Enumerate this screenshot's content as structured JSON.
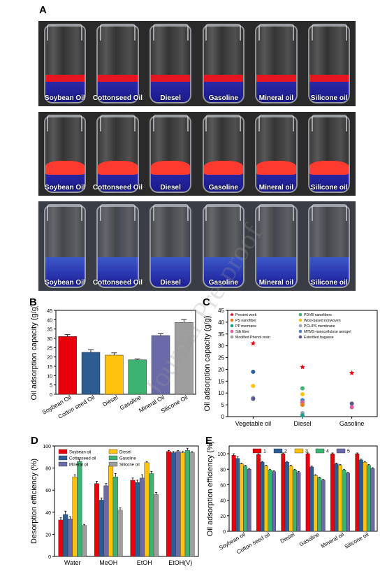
{
  "panel_labels": {
    "A": "A",
    "B": "B",
    "C": "C",
    "D": "D",
    "E": "E"
  },
  "watermark": "Journal Pre-proof",
  "photos": {
    "row1": [
      "Soybean Oil",
      "Cottonseed Oil",
      "Diesel",
      "Gasoline",
      "Mineral oil",
      "Silicone oil"
    ],
    "row2": [
      "Soybean Oil",
      "Cottonseed Oil",
      "Diesel",
      "Gasoline",
      "Mineral oil",
      "Silicone oil"
    ],
    "row3": [
      "Soybean Oil",
      "Cottonseed Oil",
      "Diesel",
      "Gasoline",
      "Mineral oil",
      "Silicone oil"
    ]
  },
  "colors": {
    "red": "#e8000b",
    "blue": "#2b5d93",
    "yellow": "#ffc20e",
    "green": "#3cb371",
    "purple": "#6a6aa8",
    "gray": "#9e9e9e",
    "photo_red": "#e8151f",
    "photo_blue": "#1b1a8c"
  },
  "chart_data": [
    {
      "panel": "B",
      "type": "bar",
      "ylabel": "Oil adsorption capacity (g/g)",
      "categories": [
        "Soybean Oil",
        "Cotton seed Oil",
        "Diesel",
        "Gasoline",
        "Mineral Oil",
        "Silicone Oil"
      ],
      "values": [
        31,
        22.5,
        21,
        18.5,
        31.5,
        38.5
      ],
      "errors": [
        1.0,
        1.4,
        1.2,
        0.4,
        1.0,
        1.6
      ],
      "colors": [
        "#e8000b",
        "#2b5d93",
        "#ffc20e",
        "#3cb371",
        "#6a6aa8",
        "#9e9e9e"
      ],
      "ylim": [
        0,
        45
      ],
      "yticks": [
        "0",
        "5",
        "10",
        "15",
        "20",
        "25",
        "30",
        "35",
        "40",
        "45"
      ]
    },
    {
      "panel": "C",
      "type": "scatter",
      "ylabel": "Oil adsorption capacity (g/g)",
      "categories": [
        "Vegetable oil",
        "Diesel",
        "Gasoline"
      ],
      "ylim": [
        0,
        45
      ],
      "yticks": [
        "0",
        "5",
        "10",
        "15",
        "20",
        "25",
        "30",
        "35",
        "40",
        "45"
      ],
      "legend": [
        {
          "name": "Present work",
          "color": "#e8000b",
          "marker": "star"
        },
        {
          "name": "PDVB nanofibers",
          "color": "#3cb371",
          "marker": "circle"
        },
        {
          "name": "PS nanofiber",
          "color": "#f07b10",
          "marker": "circle"
        },
        {
          "name": "Wool-based nonwoven",
          "color": "#ffc20e",
          "marker": "circle"
        },
        {
          "name": "PP memrane",
          "color": "#1aa08a",
          "marker": "circle"
        },
        {
          "name": "PCL/PS membrane",
          "color": "#9aa7b5",
          "marker": "circle"
        },
        {
          "name": "Silk fiber",
          "color": "#e05a9c",
          "marker": "circle"
        },
        {
          "name": "MTMS-nanocellulose aerogel",
          "color": "#4a80c0",
          "marker": "circle"
        },
        {
          "name": "Modified Phenol resin",
          "color": "#a0a0a0",
          "marker": "circle"
        },
        {
          "name": "Esterified bagasse",
          "color": "#5a5a8a",
          "marker": "circle"
        }
      ],
      "points": [
        {
          "x": "Vegetable oil",
          "y": 31,
          "color": "#e8000b",
          "marker": "star"
        },
        {
          "x": "Vegetable oil",
          "y": 19,
          "color": "#2b5d93",
          "marker": "circle"
        },
        {
          "x": "Vegetable oil",
          "y": 13,
          "color": "#ffc20e",
          "marker": "circle"
        },
        {
          "x": "Vegetable oil",
          "y": 8,
          "color": "#9aa7b5",
          "marker": "circle"
        },
        {
          "x": "Vegetable oil",
          "y": 7.5,
          "color": "#5a5a8a",
          "marker": "circle"
        },
        {
          "x": "Diesel",
          "y": 21,
          "color": "#e8000b",
          "marker": "star"
        },
        {
          "x": "Diesel",
          "y": 12,
          "color": "#3cb371",
          "marker": "circle"
        },
        {
          "x": "Diesel",
          "y": 9.5,
          "color": "#ffc20e",
          "marker": "circle"
        },
        {
          "x": "Diesel",
          "y": 7,
          "color": "#4a80c0",
          "marker": "circle"
        },
        {
          "x": "Diesel",
          "y": 6,
          "color": "#e05a9c",
          "marker": "circle"
        },
        {
          "x": "Diesel",
          "y": 5,
          "color": "#f07b10",
          "marker": "circle"
        },
        {
          "x": "Diesel",
          "y": 1.5,
          "color": "#9aa7b5",
          "marker": "circle"
        },
        {
          "x": "Diesel",
          "y": 0.5,
          "color": "#1aa08a",
          "marker": "circle"
        },
        {
          "x": "Gasoline",
          "y": 18.5,
          "color": "#e8000b",
          "marker": "star"
        },
        {
          "x": "Gasoline",
          "y": 5.5,
          "color": "#5a5a8a",
          "marker": "circle"
        },
        {
          "x": "Gasoline",
          "y": 4,
          "color": "#e05a9c",
          "marker": "circle"
        }
      ]
    },
    {
      "panel": "D",
      "type": "bar",
      "ylabel": "Desorption efficiency (%)",
      "categories": [
        "Water",
        "MeOH",
        "EtOH",
        "EtOH(V)"
      ],
      "ylim": [
        0,
        100
      ],
      "yticks": [
        "0",
        "20",
        "40",
        "60",
        "80",
        "100"
      ],
      "series": [
        {
          "name": "Soybean oil",
          "color": "#e8000b",
          "values": [
            33,
            66,
            69,
            95
          ],
          "errors": [
            2,
            2,
            2,
            1
          ]
        },
        {
          "name": "Cottonseed oil",
          "color": "#2b5d93",
          "values": [
            38,
            51,
            67,
            94
          ],
          "errors": [
            3,
            2,
            2,
            1
          ]
        },
        {
          "name": "Mineral oil",
          "color": "#6a6aa8",
          "values": [
            34,
            64,
            71,
            95
          ],
          "errors": [
            2,
            2,
            3,
            1
          ]
        },
        {
          "name": "Diesel",
          "color": "#ffc20e",
          "values": [
            72,
            82,
            85,
            94
          ],
          "errors": [
            2,
            2,
            1,
            1
          ]
        },
        {
          "name": "Gasoline",
          "color": "#3cb371",
          "values": [
            86,
            72,
            75,
            96
          ],
          "errors": [
            2,
            3,
            2,
            2
          ]
        },
        {
          "name": "Silicone oil",
          "color": "#9e9e9e",
          "values": [
            28,
            42,
            56,
            94
          ],
          "errors": [
            1,
            2,
            2,
            1
          ]
        }
      ]
    },
    {
      "panel": "E",
      "type": "bar",
      "ylabel": "Oil adsorption efficiency (%)",
      "categories": [
        "Soybean oil",
        "Cotton seed oil",
        "Diesel",
        "Gasoline",
        "Mineral oil",
        "Silicone oil"
      ],
      "ylim": [
        0,
        110
      ],
      "yticks": [
        "0",
        "20",
        "40",
        "60",
        "80",
        "100"
      ],
      "series": [
        {
          "name": "1",
          "color": "#e8000b",
          "values": [
            98,
            99,
            100,
            100,
            100,
            100
          ],
          "errors": [
            2,
            1,
            1,
            1,
            1,
            1
          ]
        },
        {
          "name": "2",
          "color": "#2b5d93",
          "values": [
            94,
            89,
            89,
            83,
            87,
            92
          ],
          "errors": [
            2,
            1,
            1,
            1,
            1,
            1
          ]
        },
        {
          "name": "3",
          "color": "#ffc20e",
          "values": [
            87,
            84,
            84,
            72,
            85,
            89
          ],
          "errors": [
            1,
            1,
            1,
            1,
            1,
            1
          ]
        },
        {
          "name": "4",
          "color": "#3cb371",
          "values": [
            84,
            79,
            79,
            69,
            79,
            85
          ],
          "errors": [
            1,
            1,
            1,
            1,
            1,
            1
          ]
        },
        {
          "name": "5",
          "color": "#6a6aa8",
          "values": [
            80,
            77,
            76,
            66,
            75,
            81
          ],
          "errors": [
            1,
            1,
            1,
            1,
            1,
            1
          ]
        }
      ]
    }
  ]
}
